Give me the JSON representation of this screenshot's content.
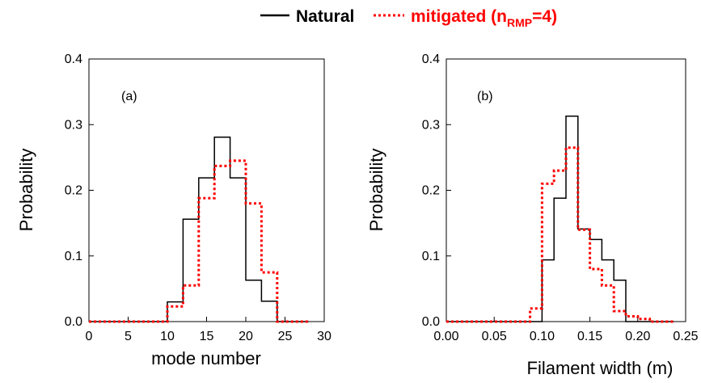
{
  "legend": {
    "natural_label": "Natural",
    "mitigated_prefix": "mitigated (n",
    "mitigated_sub": "RMP",
    "mitigated_suffix": "=4)",
    "natural_color": "#000000",
    "mitigated_color": "#ff0000"
  },
  "chart_data": [
    {
      "type": "histogram",
      "panel_label": "(a)",
      "xlabel": "mode number",
      "ylabel": "Probability",
      "xlim": [
        0,
        30
      ],
      "ylim": [
        0,
        0.4
      ],
      "xticks": [
        0,
        5,
        10,
        15,
        20,
        25,
        30
      ],
      "yticks": [
        0.0,
        0.1,
        0.2,
        0.3,
        0.4
      ],
      "xtick_labels": [
        "0",
        "5",
        "10",
        "15",
        "20",
        "25",
        "30"
      ],
      "ytick_labels": [
        "0.0",
        "0.1",
        "0.2",
        "0.3",
        "0.4"
      ],
      "series": [
        {
          "name": "Natural",
          "style": "solid",
          "color": "#000000",
          "bin_edges": [
            0,
            2,
            4,
            6,
            8,
            10,
            12,
            14,
            16,
            18,
            20,
            22,
            24,
            26,
            28
          ],
          "values": [
            0,
            0,
            0,
            0,
            0,
            0.03,
            0.156,
            0.219,
            0.281,
            0.219,
            0.063,
            0.031,
            0,
            0
          ]
        },
        {
          "name": "mitigated (nRMP=4)",
          "style": "dotted",
          "color": "#ff0000",
          "bin_edges": [
            0,
            2,
            4,
            6,
            8,
            10,
            12,
            14,
            16,
            18,
            20,
            22,
            24,
            26,
            28
          ],
          "values": [
            0,
            0,
            0,
            0,
            0,
            0.023,
            0.055,
            0.188,
            0.237,
            0.245,
            0.18,
            0.075,
            0,
            0
          ]
        }
      ]
    },
    {
      "type": "histogram",
      "panel_label": "(b)",
      "xlabel": "Filament width (m)",
      "ylabel": "Probability",
      "xlim": [
        0,
        0.25
      ],
      "ylim": [
        0,
        0.4
      ],
      "xticks": [
        0.0,
        0.05,
        0.1,
        0.15,
        0.2,
        0.25
      ],
      "yticks": [
        0.0,
        0.1,
        0.2,
        0.3,
        0.4
      ],
      "xtick_labels": [
        "0.00",
        "0.05",
        "0.10",
        "0.15",
        "0.20",
        "0.25"
      ],
      "ytick_labels": [
        "0.0",
        "0.1",
        "0.2",
        "0.3",
        "0.4"
      ],
      "series": [
        {
          "name": "Natural",
          "style": "solid",
          "color": "#000000",
          "bin_edges": [
            0.0,
            0.0125,
            0.025,
            0.0375,
            0.05,
            0.0625,
            0.075,
            0.0875,
            0.1,
            0.1125,
            0.125,
            0.1375,
            0.15,
            0.1625,
            0.175,
            0.1875,
            0.2,
            0.2125,
            0.225,
            0.2375
          ],
          "values": [
            0,
            0,
            0,
            0,
            0,
            0,
            0,
            0,
            0.094,
            0.188,
            0.313,
            0.141,
            0.125,
            0.094,
            0.063,
            0,
            0,
            0,
            0
          ]
        },
        {
          "name": "mitigated (nRMP=4)",
          "style": "dotted",
          "color": "#ff0000",
          "bin_edges": [
            0.0,
            0.0125,
            0.025,
            0.0375,
            0.05,
            0.0625,
            0.075,
            0.0875,
            0.1,
            0.1125,
            0.125,
            0.1375,
            0.15,
            0.1625,
            0.175,
            0.1875,
            0.2,
            0.2125,
            0.225,
            0.2375
          ],
          "values": [
            0,
            0,
            0,
            0,
            0,
            0,
            0,
            0.02,
            0.21,
            0.23,
            0.265,
            0.14,
            0.08,
            0.055,
            0.016,
            0.008,
            0.004,
            0,
            0
          ]
        }
      ]
    }
  ]
}
